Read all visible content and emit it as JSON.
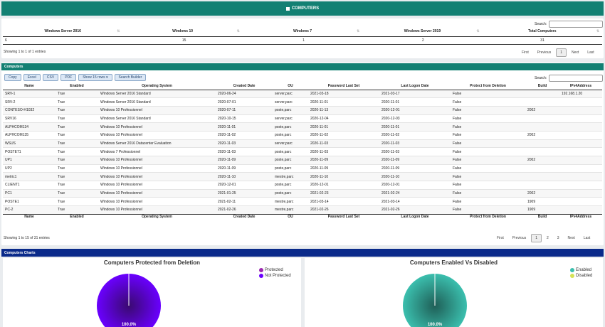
{
  "header": {
    "title": "COMPUTERS"
  },
  "summary": {
    "search_label": "Search:",
    "columns": [
      "Windows Server 2016",
      "Windows 10",
      "Windows 7",
      "Windows Server 2019",
      "Total Computers"
    ],
    "row": [
      "6",
      "15",
      "1",
      "2",
      "31"
    ],
    "info": "Showing 1 to 1 of 1 entries",
    "pager": {
      "first": "First",
      "previous": "Previous",
      "current": "1",
      "next": "Next",
      "last": "Last"
    }
  },
  "computers": {
    "section_title": "Computers",
    "buttons": [
      "Copy",
      "Excel",
      "CSV",
      "PDF",
      "Show 15 rows ▾",
      "Search Builder"
    ],
    "search_label": "Search:",
    "columns": [
      "Name",
      "Enabled",
      "Operating System",
      "Created Date",
      "OU",
      "Password Last Set",
      "Last Logon Date",
      "Protect from Deletion",
      "Build",
      "IPv4Address"
    ],
    "rows": [
      [
        "SRV-1",
        "True",
        "Windows Server 2016 Standard",
        "2020-06-24",
        "server,parc",
        "2021-03-18",
        "2021-03-17",
        "False",
        "",
        "192.168.1.20"
      ],
      [
        "SRV-2",
        "True",
        "Windows Server 2016 Standard",
        "2020-07-01",
        "server,parc",
        "2020-11-01",
        "2020-11-01",
        "False",
        "",
        ""
      ],
      [
        "CONTESO-H1032",
        "True",
        "Windows 10 Professionnel",
        "2020-07-11",
        "poste,parc",
        "2020-11-13",
        "2020-12-01",
        "False",
        "2002",
        ""
      ],
      [
        "SRV16",
        "True",
        "Windows Server 2016 Standard",
        "2020-10-15",
        "server,parc",
        "2020-12-04",
        "2020-12-03",
        "False",
        "",
        ""
      ],
      [
        "ALPHCOM134",
        "True",
        "Windows 10 Professionnel",
        "2020-11-01",
        "poste,parc",
        "2020-11-01",
        "2020-11-01",
        "False",
        "",
        ""
      ],
      [
        "ALPHCOM135",
        "True",
        "Windows 10 Professionnel",
        "2020-11-02",
        "poste,parc",
        "2020-11-02",
        "2020-11-02",
        "False",
        "2002",
        ""
      ],
      [
        "WSUS",
        "True",
        "Windows Server 2016 Datacenter Evaluation",
        "2020-11-03",
        "server,parc",
        "2020-11-03",
        "2020-11-03",
        "False",
        "",
        ""
      ],
      [
        "POSTE71",
        "True",
        "Windows 7 Professionnel",
        "2020-11-03",
        "poste,parc",
        "2020-11-03",
        "2020-11-03",
        "False",
        "",
        ""
      ],
      [
        "UP1",
        "True",
        "Windows 10 Professionnel",
        "2020-11-09",
        "poste,parc",
        "2020-11-09",
        "2020-11-09",
        "False",
        "2002",
        ""
      ],
      [
        "UP2",
        "True",
        "Windows 10 Professionnel",
        "2020-11-09",
        "poste,parc",
        "2020-11-09",
        "2020-11-09",
        "False",
        "",
        ""
      ],
      [
        "metric1",
        "True",
        "Windows 10 Professionnel",
        "2020-11-10",
        "mestre,parc",
        "2020-11-10",
        "2020-11-10",
        "False",
        "",
        ""
      ],
      [
        "CLIENT1",
        "True",
        "Windows 10 Professionnel",
        "2020-12-01",
        "poste,parc",
        "2020-12-01",
        "2020-12-01",
        "False",
        "",
        ""
      ],
      [
        "PC1",
        "True",
        "Windows 10 Professionnel",
        "2021-01-25",
        "poste,parc",
        "2021-02-23",
        "2021-02-24",
        "False",
        "2002",
        ""
      ],
      [
        "POSTE1",
        "True",
        "Windows 10 Professionnel",
        "2021-02-11",
        "mestre,parc",
        "2021-03-14",
        "2021-03-14",
        "False",
        "1909",
        ""
      ],
      [
        "PC-2",
        "True",
        "Windows 10 Professionnel",
        "2021-02-26",
        "mestre,parc",
        "2021-02-26",
        "2021-02-26",
        "False",
        "1909",
        ""
      ]
    ],
    "info": "Showing 1 to 15 of 31 entries",
    "pager": {
      "first": "First",
      "previous": "Previous",
      "pages": [
        "1",
        "2",
        "3"
      ],
      "next": "Next",
      "last": "Last"
    }
  },
  "charts_section": {
    "title": "Computers Charts"
  },
  "chart_data": [
    {
      "type": "pie",
      "title": "Computers Protected from Deletion",
      "categories": [
        "Protected",
        "Not Protected"
      ],
      "values": [
        0,
        31
      ],
      "colors": [
        "#9c27b0",
        "#6a00ff"
      ],
      "data_labels": [
        "100.0%"
      ],
      "legend": "top-right"
    },
    {
      "type": "pie",
      "title": "Computers Enabled Vs Disabled",
      "categories": [
        "Enabled",
        "Disabled"
      ],
      "values": [
        31,
        0
      ],
      "colors": [
        "#3bbfae",
        "#d4e157"
      ],
      "data_labels": [
        "100.0%"
      ],
      "legend": "top-right"
    }
  ],
  "colors": {
    "header": "#138073",
    "section": "#0a2a8a",
    "section_alt": "#138073"
  }
}
